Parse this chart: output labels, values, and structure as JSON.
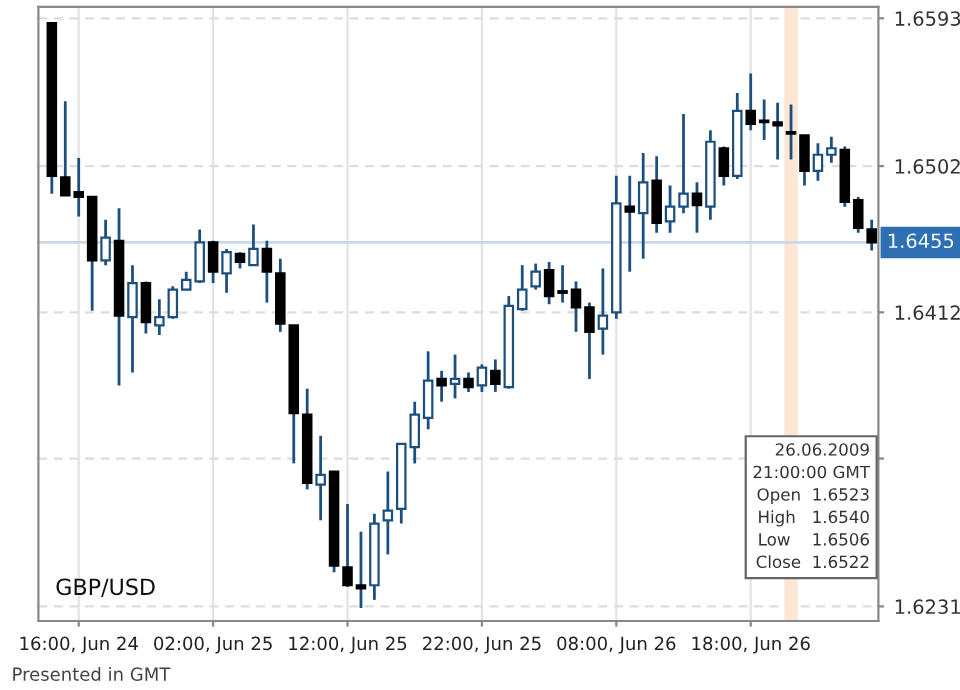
{
  "chart_data": {
    "type": "candlestick",
    "x": [
      "2009-06-24T14:00",
      "2009-06-24T15:00",
      "2009-06-24T16:00",
      "2009-06-24T17:00",
      "2009-06-24T18:00",
      "2009-06-24T19:00",
      "2009-06-24T20:00",
      "2009-06-24T21:00",
      "2009-06-24T22:00",
      "2009-06-24T23:00",
      "2009-06-25T00:00",
      "2009-06-25T01:00",
      "2009-06-25T02:00",
      "2009-06-25T03:00",
      "2009-06-25T04:00",
      "2009-06-25T05:00",
      "2009-06-25T06:00",
      "2009-06-25T07:00",
      "2009-06-25T08:00",
      "2009-06-25T09:00",
      "2009-06-25T10:00",
      "2009-06-25T11:00",
      "2009-06-25T12:00",
      "2009-06-25T13:00",
      "2009-06-25T14:00",
      "2009-06-25T15:00",
      "2009-06-25T16:00",
      "2009-06-25T17:00",
      "2009-06-25T18:00",
      "2009-06-25T19:00",
      "2009-06-25T20:00",
      "2009-06-25T21:00",
      "2009-06-25T22:00",
      "2009-06-25T23:00",
      "2009-06-26T00:00",
      "2009-06-26T01:00",
      "2009-06-26T02:00",
      "2009-06-26T03:00",
      "2009-06-26T04:00",
      "2009-06-26T05:00",
      "2009-06-26T06:00",
      "2009-06-26T07:00",
      "2009-06-26T08:00",
      "2009-06-26T09:00",
      "2009-06-26T10:00",
      "2009-06-26T11:00",
      "2009-06-26T12:00",
      "2009-06-26T13:00",
      "2009-06-26T14:00",
      "2009-06-26T15:00",
      "2009-06-26T16:00",
      "2009-06-26T17:00",
      "2009-06-26T18:00",
      "2009-06-26T19:00",
      "2009-06-26T20:00",
      "2009-06-26T21:00",
      "2009-06-26T22:00",
      "2009-06-26T23:00",
      "2009-06-27T00:00",
      "2009-06-27T01:00",
      "2009-06-27T02:00",
      "2009-06-27T03:00"
    ],
    "ohlc": [
      [
        1.659,
        1.659,
        1.6485,
        1.6496
      ],
      [
        1.6495,
        1.6542,
        1.6484,
        1.6484
      ],
      [
        1.6486,
        1.6507,
        1.6471,
        1.6483
      ],
      [
        1.6483,
        1.6483,
        1.6413,
        1.6444
      ],
      [
        1.6444,
        1.6469,
        1.6441,
        1.6458
      ],
      [
        1.6456,
        1.6476,
        1.6367,
        1.641
      ],
      [
        1.6409,
        1.6441,
        1.6375,
        1.643
      ],
      [
        1.643,
        1.6431,
        1.6399,
        1.6406
      ],
      [
        1.6404,
        1.642,
        1.6398,
        1.6409
      ],
      [
        1.6409,
        1.6428,
        1.6408,
        1.6426
      ],
      [
        1.6426,
        1.6437,
        1.6426,
        1.6432
      ],
      [
        1.6431,
        1.6463,
        1.643,
        1.6455
      ],
      [
        1.6455,
        1.6456,
        1.643,
        1.6437
      ],
      [
        1.6436,
        1.6451,
        1.6424,
        1.6449
      ],
      [
        1.6448,
        1.6449,
        1.6439,
        1.6443
      ],
      [
        1.6441,
        1.6466,
        1.6441,
        1.6451
      ],
      [
        1.6451,
        1.6456,
        1.6418,
        1.6437
      ],
      [
        1.6436,
        1.6445,
        1.64,
        1.6405
      ],
      [
        1.6404,
        1.6404,
        1.6319,
        1.635
      ],
      [
        1.6349,
        1.6365,
        1.6303,
        1.6307
      ],
      [
        1.6306,
        1.6336,
        1.6284,
        1.6312
      ],
      [
        1.6314,
        1.6314,
        1.6252,
        1.6256
      ],
      [
        1.6255,
        1.6294,
        1.6243,
        1.6244
      ],
      [
        1.6244,
        1.6277,
        1.623,
        1.6242
      ],
      [
        1.6244,
        1.6288,
        1.6235,
        1.6282
      ],
      [
        1.6284,
        1.6314,
        1.6263,
        1.629
      ],
      [
        1.6291,
        1.6331,
        1.6282,
        1.6331
      ],
      [
        1.6329,
        1.6357,
        1.6319,
        1.6349
      ],
      [
        1.6347,
        1.6388,
        1.634,
        1.637
      ],
      [
        1.6371,
        1.6376,
        1.6357,
        1.6367
      ],
      [
        1.6368,
        1.6386,
        1.6359,
        1.6371
      ],
      [
        1.6371,
        1.6375,
        1.6363,
        1.6366
      ],
      [
        1.6367,
        1.638,
        1.6363,
        1.6378
      ],
      [
        1.6376,
        1.6383,
        1.6363,
        1.6368
      ],
      [
        1.6366,
        1.6422,
        1.6365,
        1.6416
      ],
      [
        1.6414,
        1.6441,
        1.6413,
        1.6426
      ],
      [
        1.6428,
        1.6442,
        1.6426,
        1.6437
      ],
      [
        1.6438,
        1.6443,
        1.6417,
        1.6422
      ],
      [
        1.6425,
        1.6441,
        1.6418,
        1.6424
      ],
      [
        1.6426,
        1.6431,
        1.64,
        1.6415
      ],
      [
        1.6415,
        1.6418,
        1.6371,
        1.64
      ],
      [
        1.6402,
        1.6439,
        1.6386,
        1.641
      ],
      [
        1.6412,
        1.6496,
        1.6408,
        1.6479
      ],
      [
        1.6477,
        1.6496,
        1.6437,
        1.6474
      ],
      [
        1.6473,
        1.651,
        1.6445,
        1.6492
      ],
      [
        1.6493,
        1.6508,
        1.6461,
        1.6467
      ],
      [
        1.6468,
        1.649,
        1.6461,
        1.6477
      ],
      [
        1.6477,
        1.6534,
        1.6473,
        1.6485
      ],
      [
        1.6485,
        1.6492,
        1.6461,
        1.6478
      ],
      [
        1.6477,
        1.6524,
        1.6469,
        1.6517
      ],
      [
        1.6513,
        1.6514,
        1.649,
        1.6496
      ],
      [
        1.6496,
        1.6547,
        1.6494,
        1.6536
      ],
      [
        1.6536,
        1.6559,
        1.6524,
        1.6528
      ],
      [
        1.653,
        1.6543,
        1.6518,
        1.6529
      ],
      [
        1.6529,
        1.6541,
        1.6506,
        1.6527
      ],
      [
        1.6523,
        1.654,
        1.6506,
        1.6522
      ],
      [
        1.6521,
        1.6521,
        1.649,
        1.6499
      ],
      [
        1.6499,
        1.6516,
        1.6493,
        1.6509
      ],
      [
        1.6509,
        1.652,
        1.6504,
        1.6513
      ],
      [
        1.6512,
        1.6514,
        1.6477,
        1.648
      ],
      [
        1.6481,
        1.6483,
        1.6461,
        1.6464
      ],
      [
        1.6463,
        1.6469,
        1.645,
        1.6455
      ]
    ],
    "color": "#1b4f80",
    "colors": [
      "#000000",
      "#000000",
      "#000000",
      "#000000",
      "#ffffff",
      "#000000",
      "#ffffff",
      "#000000",
      "#ffffff",
      "#ffffff",
      "#ffffff",
      "#ffffff",
      "#000000",
      "#ffffff",
      "#000000",
      "#ffffff",
      "#000000",
      "#000000",
      "#000000",
      "#000000",
      "#ffffff",
      "#000000",
      "#000000",
      "#000000",
      "#ffffff",
      "#ffffff",
      "#ffffff",
      "#ffffff",
      "#ffffff",
      "#000000",
      "#ffffff",
      "#000000",
      "#ffffff",
      "#000000",
      "#ffffff",
      "#ffffff",
      "#ffffff",
      "#000000",
      "#000000",
      "#000000",
      "#000000",
      "#ffffff",
      "#ffffff",
      "#000000",
      "#ffffff",
      "#000000",
      "#ffffff",
      "#ffffff",
      "#000000",
      "#ffffff",
      "#000000",
      "#ffffff",
      "#000000",
      "#000000",
      "#000000",
      "#000000",
      "#000000",
      "#ffffff",
      "#ffffff",
      "#000000",
      "#000000",
      "#000000"
    ],
    "xlim": [
      "2009-06-24T13:00",
      "2009-06-27T03:30"
    ],
    "ylim": [
      1.6222,
      1.66
    ],
    "xticks": [
      {
        "value": "2009-06-24T16:00",
        "label": "16:00, Jun 24"
      },
      {
        "value": "2009-06-25T02:00",
        "label": "02:00, Jun 25"
      },
      {
        "value": "2009-06-25T12:00",
        "label": "12:00, Jun 25"
      },
      {
        "value": "2009-06-25T22:00",
        "label": "22:00, Jun 25"
      },
      {
        "value": "2009-06-26T08:00",
        "label": "08:00, Jun 26"
      },
      {
        "value": "2009-06-26T18:00",
        "label": "18:00, Jun 26"
      }
    ],
    "yticks": [
      1.6231,
      {
        "value": 1.6322,
        "label": null
      },
      1.6412,
      1.6502,
      1.6593
    ],
    "ref_lines": [
      {
        "axis": "y",
        "value": 1.6455,
        "label": "1.6455",
        "color": "#c9d8ea"
      }
    ],
    "bands": [
      {
        "axis": "x",
        "from": "2009-06-26T20:30",
        "to": "2009-06-26T21:30",
        "label": null,
        "color": "#fde6d4"
      }
    ],
    "grid": true,
    "annotations": [
      "GBP/USD",
      "Presented in GMT",
      "26.06.2009\n21:00:00 GMT\nOpen  1.6523\nHigh   1.6540\nLow    1.6506\nClose  1.6522"
    ]
  }
}
